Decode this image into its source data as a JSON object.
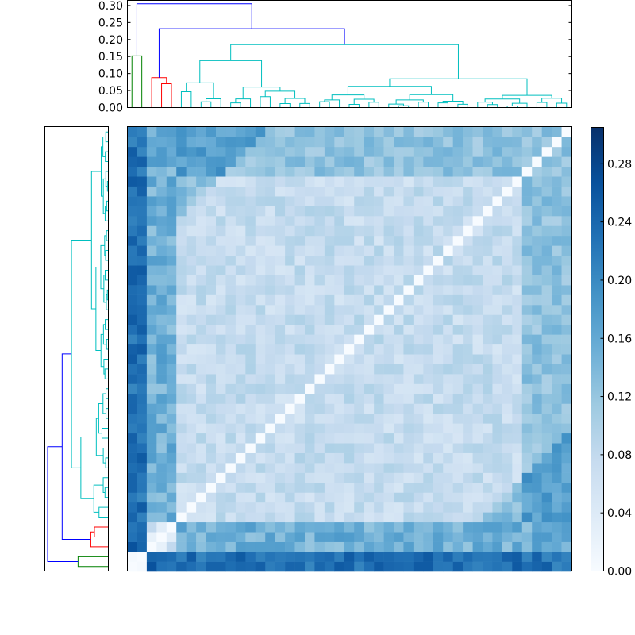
{
  "chart_data": {
    "type": "heatmap",
    "title": "",
    "n": 45,
    "colormap": {
      "name": "Blues",
      "stops": [
        "#f7fbff",
        "#deebf7",
        "#c6dbef",
        "#9ecae1",
        "#6baed6",
        "#4292c6",
        "#2171b5",
        "#08519c",
        "#08306b"
      ]
    },
    "value_range": [
      0.0,
      0.305
    ],
    "colorbar": {
      "ticks": [
        0.0,
        0.04,
        0.08,
        0.12,
        0.16,
        0.2,
        0.24,
        0.28
      ],
      "tick_labels": [
        "0.00",
        "0.04",
        "0.08",
        "0.12",
        "0.16",
        "0.20",
        "0.24",
        "0.28"
      ]
    },
    "top_dendrogram": {
      "ylim": [
        0,
        0.315
      ],
      "ticks": [
        0.0,
        0.05,
        0.1,
        0.15,
        0.2,
        0.25,
        0.3
      ],
      "tick_labels": [
        "0.00",
        "0.05",
        "0.10",
        "0.15",
        "0.20",
        "0.25",
        "0.30"
      ],
      "cluster_colors": [
        "#008000",
        "#ff0000",
        "#00bfbf"
      ],
      "link_color": "#0000ff",
      "root_height": 0.305,
      "clusters": [
        {
          "name": "green",
          "size": 2,
          "merge_height": 0.152
        },
        {
          "name": "red",
          "size": 3,
          "merge_height": 0.088
        },
        {
          "name": "cyan",
          "size": 40,
          "merge_height": 0.185
        }
      ],
      "links": [
        {
          "between": "red|cyan",
          "height": 0.232
        },
        {
          "between": "green|rest",
          "height": 0.305
        }
      ]
    },
    "group_mean_distance": [
      [
        0.02,
        0.24,
        0.23
      ],
      [
        0.24,
        0.05,
        0.15
      ],
      [
        0.23,
        0.15,
        0.06
      ]
    ]
  }
}
